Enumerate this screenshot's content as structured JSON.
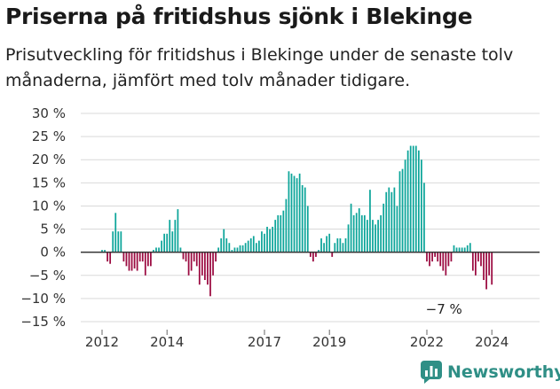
{
  "title": "Priserna på fritidshus sjönk i Blekinge",
  "subtitle": "Prisutveckling för fritidshus i Blekinge under de senaste tolv månaderna, jämfört med tolv månader tidigare.",
  "brand": {
    "name": "Newsworthy",
    "icon": "newsworthy-chart-icon"
  },
  "colors": {
    "positive": "#0da59a",
    "negative": "#9b0a40",
    "grid": "#d9d9d9",
    "axis": "#333333"
  },
  "chart_data": {
    "type": "bar",
    "title": "Priserna på fritidshus sjönk i Blekinge",
    "xlabel": "",
    "ylabel": "",
    "ylim": [
      -15,
      30
    ],
    "y_ticks": [
      30,
      25,
      20,
      15,
      10,
      5,
      0,
      -5,
      -10,
      -15
    ],
    "y_tick_labels": [
      "30 %",
      "25 %",
      "20 %",
      "15 %",
      "10 %",
      "5 %",
      "0 %",
      "−5 %",
      "−10 %",
      "−15 %"
    ],
    "x_tick_labels": [
      "2012",
      "2014",
      "2017",
      "2019",
      "2022",
      "2024"
    ],
    "x_tick_positions": [
      2012.0,
      2014.0,
      2017.0,
      2019.0,
      2022.0,
      2024.0
    ],
    "x_start": 2012.0,
    "x_step": 0.08333,
    "grid": true,
    "annotations": [
      {
        "text": "−7 %",
        "x_index": 125,
        "y": -7
      }
    ],
    "values": [
      0.5,
      0.5,
      -2,
      -2.5,
      4.5,
      8.5,
      4.5,
      4.5,
      -2,
      -3,
      -4,
      -4,
      -3.5,
      -4,
      -2,
      -2,
      -5,
      -3,
      -3,
      0.5,
      1,
      1,
      2.5,
      4,
      4,
      7,
      4.5,
      7,
      9.3,
      1,
      -1.5,
      -2,
      -5,
      -4,
      -2,
      -3,
      -7,
      -5,
      -6,
      -7,
      -9.5,
      -5,
      -2,
      1,
      3,
      5,
      3,
      2,
      0.5,
      1,
      1,
      1.5,
      1.5,
      2,
      2.5,
      3,
      3.5,
      2,
      2.5,
      4.5,
      4,
      5.5,
      5,
      5.5,
      7,
      8,
      8,
      9,
      11.5,
      17.5,
      17,
      16.5,
      16,
      17,
      14.5,
      14,
      10,
      -1,
      -2,
      -1,
      0.5,
      3,
      2,
      3.5,
      4,
      -1,
      2,
      3,
      3,
      2,
      3,
      6,
      10.5,
      8,
      8.5,
      9.5,
      8,
      8,
      7,
      13.5,
      7,
      6,
      7,
      8,
      10.5,
      13,
      14,
      13,
      14,
      10,
      17.5,
      18,
      20,
      22,
      23,
      23,
      23,
      22,
      20,
      15,
      -2,
      -3,
      -2,
      -1,
      -2,
      -3,
      -4,
      -5,
      -3,
      -2,
      1.5,
      1,
      1,
      1,
      1,
      1.5,
      2,
      -4,
      -5,
      -2,
      -3,
      -6,
      -8,
      -5,
      -7
    ]
  }
}
